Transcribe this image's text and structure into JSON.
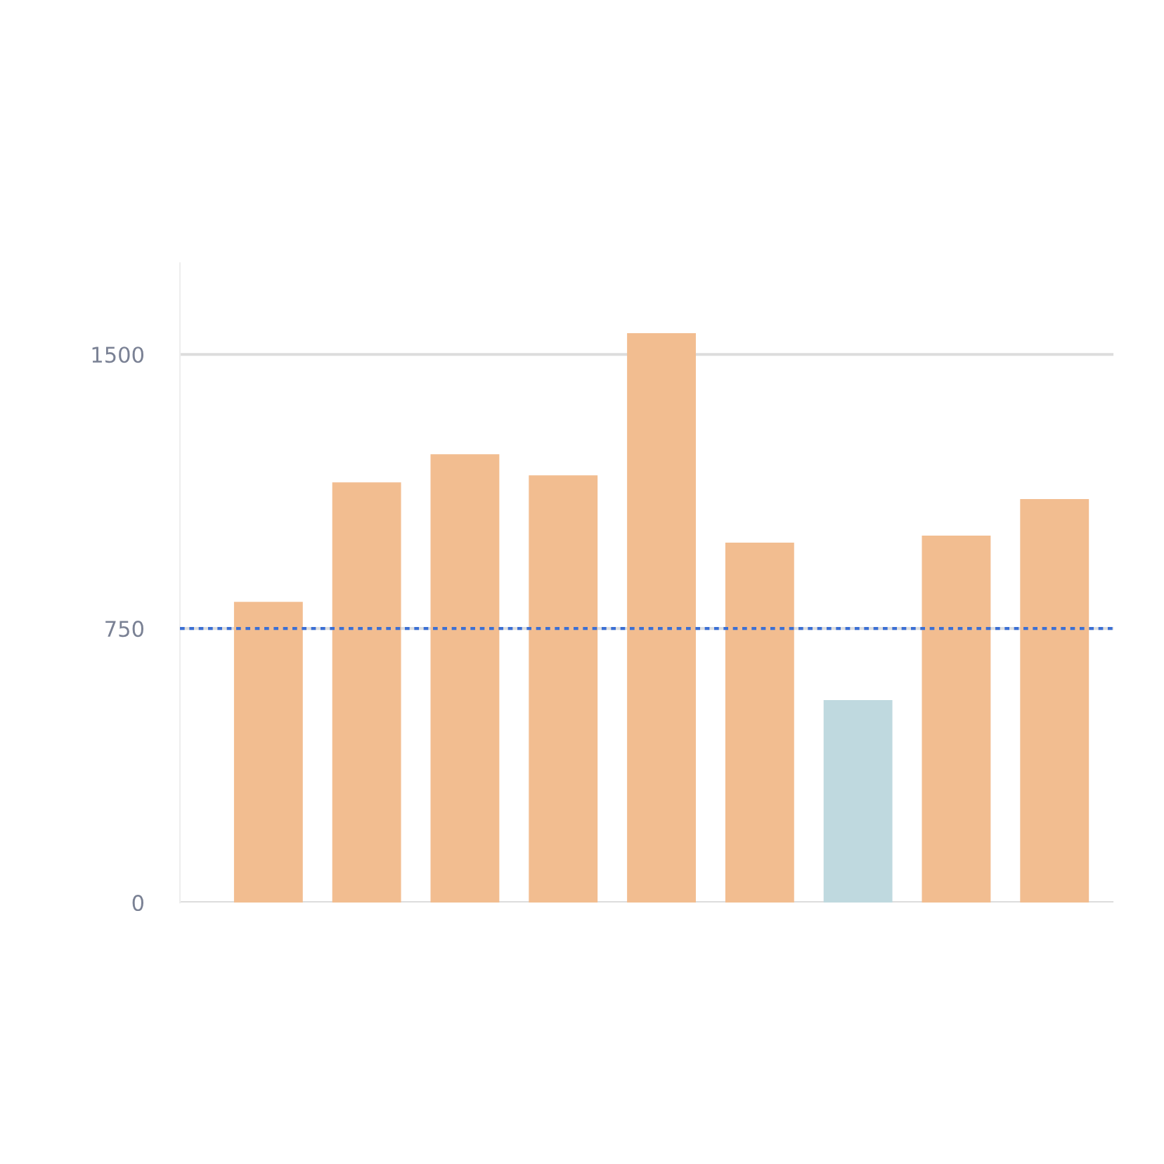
{
  "chart_data": {
    "type": "bar",
    "categories": [
      null,
      null,
      null,
      null,
      null,
      null,
      null,
      null,
      null
    ],
    "values": [
      823,
      1150,
      1227,
      1169,
      1558,
      985,
      554,
      1004,
      1104
    ],
    "colors": [
      "#f2bd90",
      "#f2bd90",
      "#f2bd90",
      "#f2bd90",
      "#f2bd90",
      "#f2bd90",
      "#bfd9df",
      "#f2bd90",
      "#f2bd90"
    ],
    "ylim": [
      0,
      1750
    ],
    "yticks": [
      0,
      750,
      1500
    ],
    "grid": "y",
    "ref_lines": [
      {
        "axis": "y",
        "value": 750,
        "color": "#3b6fd4",
        "line_style": "dotted"
      }
    ]
  }
}
